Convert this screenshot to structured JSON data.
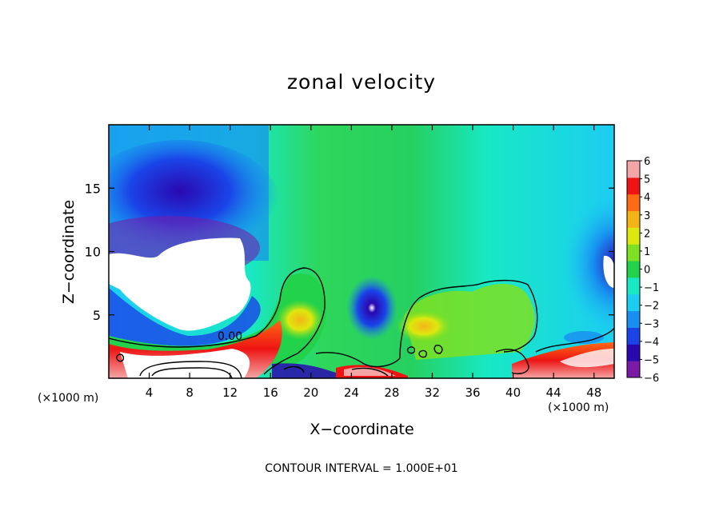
{
  "chart_data": {
    "type": "heatmap",
    "title": "zonal velocity",
    "xlabel": "X−coordinate",
    "ylabel": "Z−coordinate",
    "x_unit_label": "(×1000 m)",
    "xlim": [
      0,
      50
    ],
    "ylim": [
      0,
      20
    ],
    "x_ticks": [
      4,
      8,
      12,
      16,
      20,
      24,
      28,
      32,
      36,
      40,
      44,
      48
    ],
    "y_ticks": [
      5,
      10,
      15
    ],
    "colorbar": {
      "min": -6,
      "max": 6,
      "ticks": [
        "6",
        "5",
        "4",
        "3",
        "2",
        "1",
        "0",
        "−1",
        "−2",
        "−3",
        "−4",
        "−5",
        "−6"
      ],
      "colors": [
        "#7a1aa6",
        "#2a08b0",
        "#1a44e8",
        "#188ef0",
        "#1ccdf2",
        "#18e8c4",
        "#22d24a",
        "#7ee022",
        "#dde80e",
        "#f4b418",
        "#ff6a14",
        "#ee1414",
        "#f4a6a6"
      ]
    },
    "contour_label": "0.00",
    "contour_interval_text": "CONTOUR INTERVAL = 1.000E+01",
    "grid": false
  },
  "colors": {
    "frame": "#000000",
    "background": "#ffffff"
  }
}
